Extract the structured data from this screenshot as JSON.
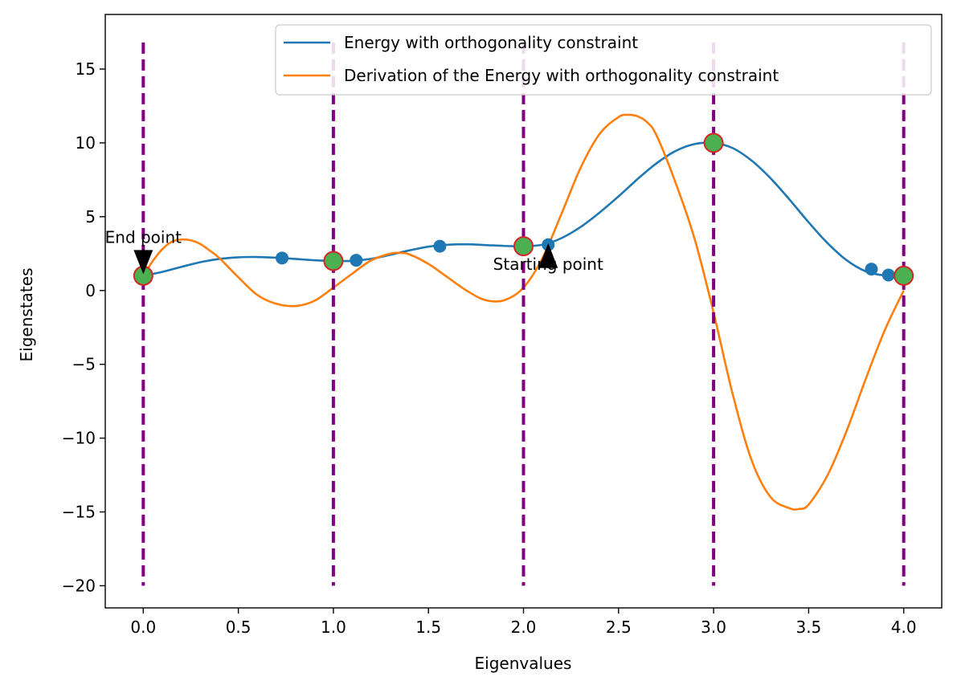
{
  "chart_data": {
    "type": "line",
    "xlabel": "Eigenvalues",
    "ylabel": "Eigenstates",
    "xlim": [
      -0.2,
      4.2
    ],
    "ylim": [
      -21.5,
      18.7
    ],
    "xticks": [
      0.0,
      0.5,
      1.0,
      1.5,
      2.0,
      2.5,
      3.0,
      3.5,
      4.0
    ],
    "xtick_labels": [
      "0.0",
      "0.5",
      "1.0",
      "1.5",
      "2.0",
      "2.5",
      "3.0",
      "3.5",
      "4.0"
    ],
    "yticks": [
      15,
      10,
      5,
      0,
      -5,
      -10,
      -15,
      -20
    ],
    "ytick_labels": [
      "15",
      "10",
      "5",
      "0",
      "−10",
      "−15",
      "−20"
    ],
    "ytick_labels_full": [
      "15",
      "10",
      "5",
      "0",
      "−5",
      "−10",
      "−15",
      "−20"
    ],
    "grid": false,
    "legend_position": "top-right",
    "series": [
      {
        "name": "Energy with orthogonality constraint",
        "color": "#1f77b4",
        "x": [
          0.0,
          0.1,
          0.2,
          0.3,
          0.4,
          0.5,
          0.6,
          0.7,
          0.8,
          0.9,
          1.0,
          1.1,
          1.2,
          1.3,
          1.4,
          1.5,
          1.6,
          1.7,
          1.8,
          1.9,
          2.0,
          2.1,
          2.2,
          2.3,
          2.4,
          2.5,
          2.6,
          2.7,
          2.8,
          2.9,
          3.0,
          3.1,
          3.2,
          3.3,
          3.4,
          3.5,
          3.6,
          3.7,
          3.8,
          3.9,
          4.0
        ],
        "y": [
          1.0,
          1.26,
          1.6,
          1.92,
          2.14,
          2.25,
          2.27,
          2.22,
          2.14,
          2.05,
          2.0,
          2.01,
          2.15,
          2.42,
          2.72,
          2.97,
          3.1,
          3.13,
          3.08,
          3.02,
          3.0,
          3.1,
          3.55,
          4.3,
          5.28,
          6.38,
          7.55,
          8.62,
          9.45,
          9.92,
          10.0,
          9.65,
          8.8,
          7.6,
          6.15,
          4.62,
          3.2,
          2.05,
          1.3,
          1.02,
          1.0
        ]
      },
      {
        "name": "Derivation of the Energy with orthogonality constraint",
        "color": "#ff7f0e",
        "x": [
          0.0,
          0.05,
          0.1,
          0.15,
          0.2,
          0.25,
          0.3,
          0.35,
          0.4,
          0.5,
          0.6,
          0.7,
          0.8,
          0.9,
          1.0,
          1.1,
          1.2,
          1.3,
          1.35,
          1.4,
          1.5,
          1.6,
          1.7,
          1.8,
          1.9,
          2.0,
          2.1,
          2.2,
          2.3,
          2.4,
          2.5,
          2.55,
          2.6,
          2.65,
          2.7,
          2.8,
          2.9,
          3.0,
          3.1,
          3.2,
          3.3,
          3.4,
          3.45,
          3.5,
          3.6,
          3.7,
          3.8,
          3.9,
          4.0
        ],
        "y": [
          1.0,
          2.0,
          2.8,
          3.3,
          3.45,
          3.4,
          3.15,
          2.7,
          2.2,
          0.9,
          -0.3,
          -0.9,
          -1.05,
          -0.7,
          0.2,
          1.15,
          2.05,
          2.5,
          2.55,
          2.45,
          1.8,
          0.9,
          0.0,
          -0.65,
          -0.65,
          0.2,
          2.2,
          5.2,
          8.3,
          10.6,
          11.75,
          11.9,
          11.8,
          11.4,
          10.5,
          7.3,
          3.5,
          -1.5,
          -7.0,
          -11.5,
          -14.0,
          -14.75,
          -14.8,
          -14.5,
          -12.5,
          -9.5,
          -6.0,
          -2.7,
          0.0
        ]
      }
    ],
    "scatter_points": {
      "color": "#1f77b4",
      "x": [
        0.0,
        0.73,
        1.0,
        1.12,
        1.56,
        2.0,
        2.13,
        3.0,
        3.83,
        3.92,
        4.0
      ],
      "y": [
        1.0,
        2.2,
        2.0,
        2.05,
        3.0,
        3.0,
        3.1,
        10.0,
        1.45,
        1.05,
        1.0
      ]
    },
    "highlighted_points": {
      "fill": "#4caf50",
      "stroke": "#d62728",
      "x": [
        0.0,
        1.0,
        2.0,
        3.0,
        4.0
      ],
      "y": [
        1.0,
        2.0,
        3.0,
        10.0,
        1.0
      ]
    },
    "vlines": {
      "color": "#800080",
      "x": [
        0.0,
        1.0,
        2.0,
        3.0,
        4.0
      ],
      "ymin": -20,
      "ymax": 16.8
    },
    "annotations": [
      {
        "text": "End point",
        "x": 0.0,
        "y": 1.0,
        "text_x": 0.0,
        "text_y": 3.0,
        "marker": "down-arrow"
      },
      {
        "text": "Starting point",
        "x": 2.13,
        "y": 3.1,
        "text_x": 2.13,
        "text_y": 1.4,
        "marker": "up-arrow"
      }
    ]
  }
}
